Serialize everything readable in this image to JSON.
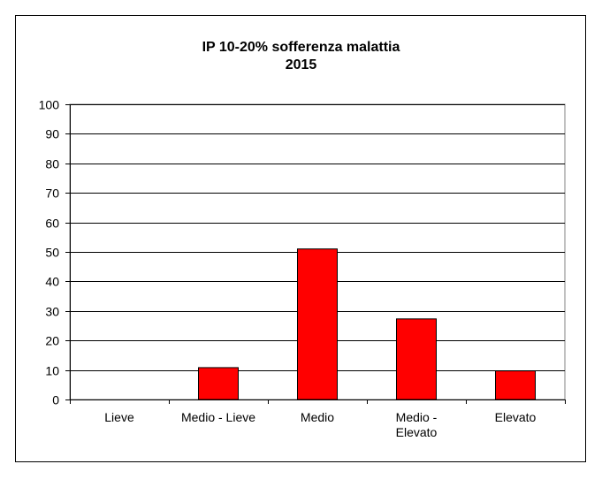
{
  "chart_data": {
    "type": "bar",
    "title": "IP 10-20% sofferenza malattia",
    "subtitle": "2015",
    "categories": [
      "Lieve",
      "Medio - Lieve",
      "Medio",
      "Medio - Elevato",
      "Elevato"
    ],
    "category_lines": [
      [
        "Lieve"
      ],
      [
        "Medio - Lieve"
      ],
      [
        "Medio"
      ],
      [
        "Medio -",
        "Elevato"
      ],
      [
        "Elevato"
      ]
    ],
    "values": [
      0,
      10.8,
      51,
      27.3,
      9.7
    ],
    "ylim": [
      0,
      100
    ],
    "yticks": [
      0,
      10,
      20,
      30,
      40,
      50,
      60,
      70,
      80,
      90,
      100
    ],
    "xlabel": "",
    "ylabel": "",
    "grid": true,
    "legend": "none",
    "bar_color": "#ff0000"
  }
}
